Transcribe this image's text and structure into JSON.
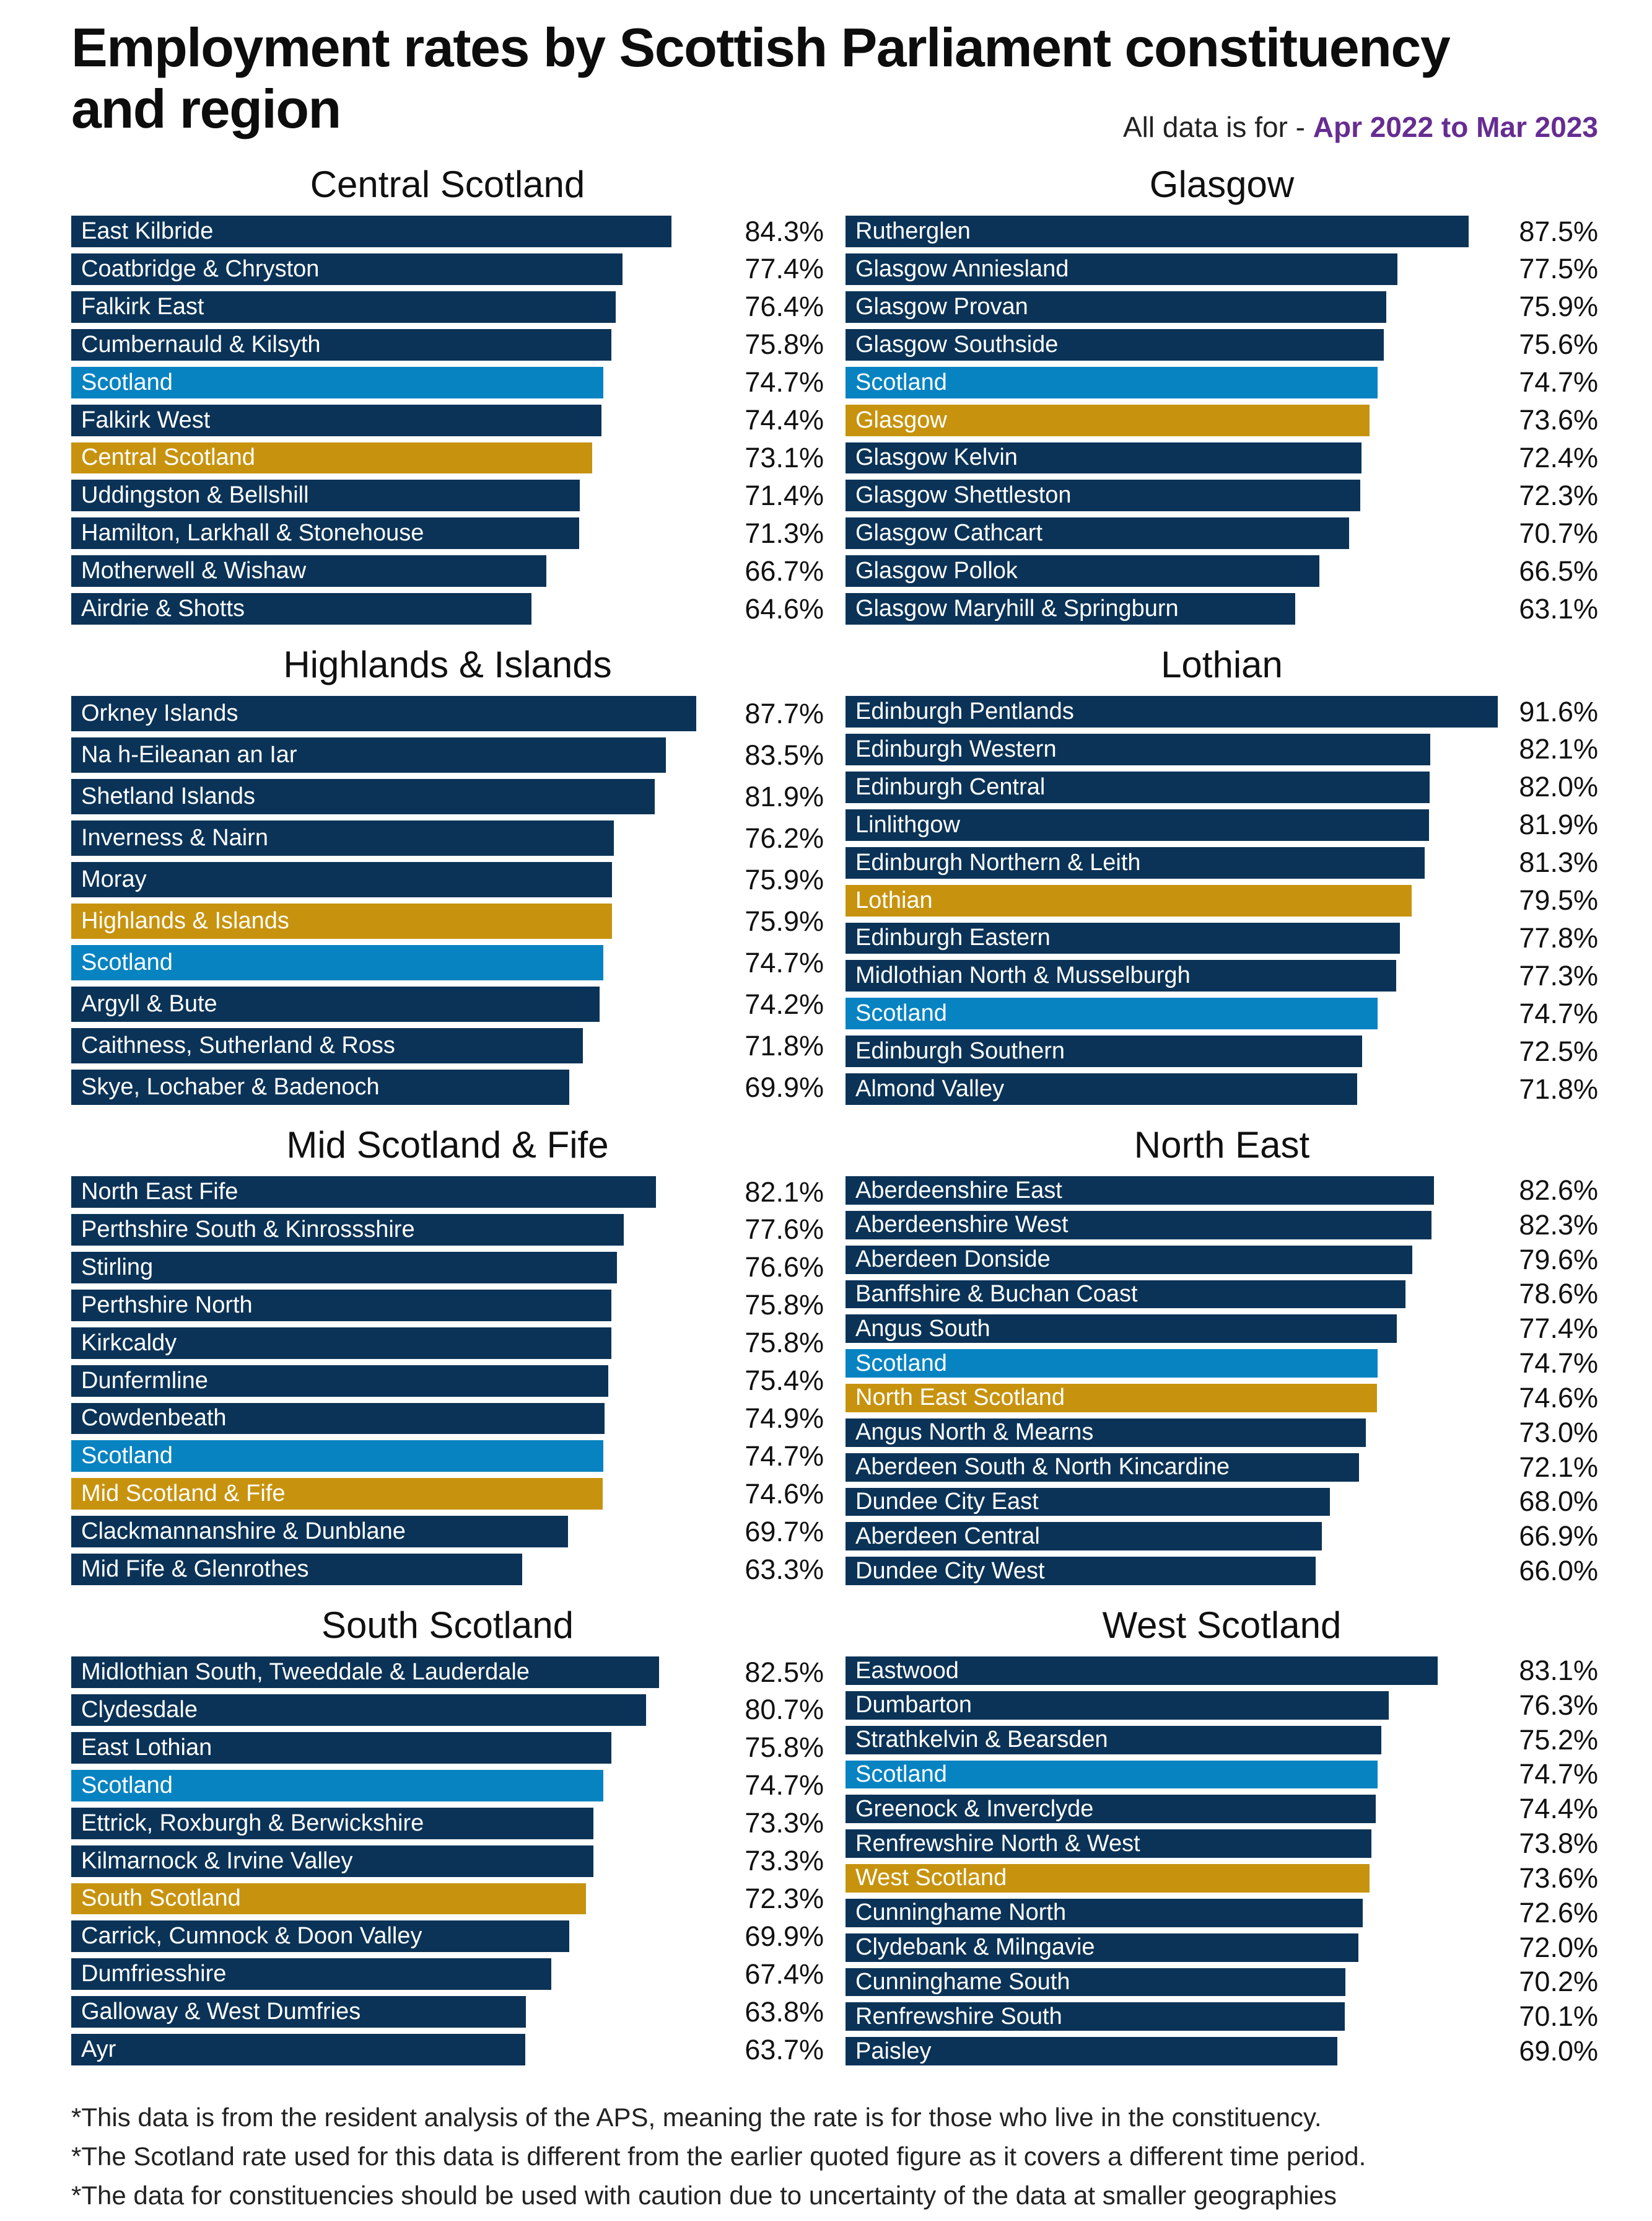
{
  "title_lines": [
    "Employment rates by Scottish Parliament constituency",
    "and region"
  ],
  "subtitle_prefix": "All data is for - ",
  "subtitle_period": "Apr 2022 to Mar 2023",
  "colors": {
    "navy": "#0b3357",
    "scotland_blue": "#0883c1",
    "region_gold": "#c7930e",
    "period_purple": "#662d91",
    "text": "#1a1a1a",
    "bar_label": "#ffffff"
  },
  "kind_color_key": {
    "constituency": "navy",
    "scotland": "scotland_blue",
    "region": "region_gold"
  },
  "footnotes": [
    "*This data is from the resident analysis of the APS, meaning the rate is for those who live in the constituency.",
    "*The Scotland rate used for this data is different from the earlier quoted figure as it covers a different time period.",
    "*The data for constituencies should be used with caution due to uncertainty of the data at smaller geographies"
  ],
  "chart_data": [
    {
      "type": "bar",
      "orientation": "horizontal",
      "unit": "%",
      "xlim": [
        0,
        100
      ],
      "grid": false,
      "title": "Central Scotland",
      "bars": [
        {
          "label": "East Kilbride",
          "value": 84.3,
          "kind": "constituency"
        },
        {
          "label": "Coatbridge & Chryston",
          "value": 77.4,
          "kind": "constituency"
        },
        {
          "label": "Falkirk East",
          "value": 76.4,
          "kind": "constituency"
        },
        {
          "label": "Cumbernauld & Kilsyth",
          "value": 75.8,
          "kind": "constituency"
        },
        {
          "label": "Scotland",
          "value": 74.7,
          "kind": "scotland"
        },
        {
          "label": "Falkirk West",
          "value": 74.4,
          "kind": "constituency"
        },
        {
          "label": "Central Scotland",
          "value": 73.1,
          "kind": "region"
        },
        {
          "label": "Uddingston & Bellshill",
          "value": 71.4,
          "kind": "constituency"
        },
        {
          "label": "Hamilton, Larkhall & Stonehouse",
          "value": 71.3,
          "kind": "constituency"
        },
        {
          "label": "Motherwell & Wishaw",
          "value": 66.7,
          "kind": "constituency"
        },
        {
          "label": "Airdrie & Shotts",
          "value": 64.6,
          "kind": "constituency"
        }
      ]
    },
    {
      "type": "bar",
      "orientation": "horizontal",
      "unit": "%",
      "xlim": [
        0,
        100
      ],
      "grid": false,
      "title": "Glasgow",
      "bars": [
        {
          "label": "Rutherglen",
          "value": 87.5,
          "kind": "constituency"
        },
        {
          "label": "Glasgow Anniesland",
          "value": 77.5,
          "kind": "constituency"
        },
        {
          "label": "Glasgow Provan",
          "value": 75.9,
          "kind": "constituency"
        },
        {
          "label": "Glasgow Southside",
          "value": 75.6,
          "kind": "constituency"
        },
        {
          "label": "Scotland",
          "value": 74.7,
          "kind": "scotland"
        },
        {
          "label": "Glasgow",
          "value": 73.6,
          "kind": "region"
        },
        {
          "label": "Glasgow Kelvin",
          "value": 72.4,
          "kind": "constituency"
        },
        {
          "label": "Glasgow Shettleston",
          "value": 72.3,
          "kind": "constituency"
        },
        {
          "label": "Glasgow Cathcart",
          "value": 70.7,
          "kind": "constituency"
        },
        {
          "label": "Glasgow Pollok",
          "value": 66.5,
          "kind": "constituency"
        },
        {
          "label": "Glasgow Maryhill & Springburn",
          "value": 63.1,
          "kind": "constituency"
        }
      ]
    },
    {
      "type": "bar",
      "orientation": "horizontal",
      "unit": "%",
      "xlim": [
        0,
        100
      ],
      "grid": false,
      "title": "Highlands & Islands",
      "bars": [
        {
          "label": "Orkney Islands",
          "value": 87.7,
          "kind": "constituency"
        },
        {
          "label": "Na h-Eileanan an Iar",
          "value": 83.5,
          "kind": "constituency"
        },
        {
          "label": "Shetland Islands",
          "value": 81.9,
          "kind": "constituency"
        },
        {
          "label": "Inverness & Nairn",
          "value": 76.2,
          "kind": "constituency"
        },
        {
          "label": "Moray",
          "value": 75.9,
          "kind": "constituency"
        },
        {
          "label": "Highlands & Islands",
          "value": 75.9,
          "kind": "region"
        },
        {
          "label": "Scotland",
          "value": 74.7,
          "kind": "scotland"
        },
        {
          "label": "Argyll & Bute",
          "value": 74.2,
          "kind": "constituency"
        },
        {
          "label": "Caithness, Sutherland & Ross",
          "value": 71.8,
          "kind": "constituency"
        },
        {
          "label": "Skye, Lochaber & Badenoch",
          "value": 69.9,
          "kind": "constituency"
        }
      ]
    },
    {
      "type": "bar",
      "orientation": "horizontal",
      "unit": "%",
      "xlim": [
        0,
        100
      ],
      "grid": false,
      "title": "Lothian",
      "bars": [
        {
          "label": "Edinburgh Pentlands",
          "value": 91.6,
          "kind": "constituency"
        },
        {
          "label": "Edinburgh Western",
          "value": 82.1,
          "kind": "constituency"
        },
        {
          "label": "Edinburgh Central",
          "value": 82.0,
          "kind": "constituency"
        },
        {
          "label": "Linlithgow",
          "value": 81.9,
          "kind": "constituency"
        },
        {
          "label": "Edinburgh Northern & Leith",
          "value": 81.3,
          "kind": "constituency"
        },
        {
          "label": "Lothian",
          "value": 79.5,
          "kind": "region"
        },
        {
          "label": "Edinburgh Eastern",
          "value": 77.8,
          "kind": "constituency"
        },
        {
          "label": "Midlothian North & Musselburgh",
          "value": 77.3,
          "kind": "constituency"
        },
        {
          "label": "Scotland",
          "value": 74.7,
          "kind": "scotland"
        },
        {
          "label": "Edinburgh Southern",
          "value": 72.5,
          "kind": "constituency"
        },
        {
          "label": "Almond Valley",
          "value": 71.8,
          "kind": "constituency"
        }
      ]
    },
    {
      "type": "bar",
      "orientation": "horizontal",
      "unit": "%",
      "xlim": [
        0,
        100
      ],
      "grid": false,
      "title": "Mid Scotland & Fife",
      "bars": [
        {
          "label": "North East Fife",
          "value": 82.1,
          "kind": "constituency"
        },
        {
          "label": "Perthshire South & Kinrossshire",
          "value": 77.6,
          "kind": "constituency"
        },
        {
          "label": "Stirling",
          "value": 76.6,
          "kind": "constituency"
        },
        {
          "label": "Perthshire North",
          "value": 75.8,
          "kind": "constituency"
        },
        {
          "label": "Kirkcaldy",
          "value": 75.8,
          "kind": "constituency"
        },
        {
          "label": "Dunfermline",
          "value": 75.4,
          "kind": "constituency"
        },
        {
          "label": "Cowdenbeath",
          "value": 74.9,
          "kind": "constituency"
        },
        {
          "label": "Scotland",
          "value": 74.7,
          "kind": "scotland"
        },
        {
          "label": "Mid Scotland & Fife",
          "value": 74.6,
          "kind": "region"
        },
        {
          "label": "Clackmannanshire & Dunblane",
          "value": 69.7,
          "kind": "constituency"
        },
        {
          "label": "Mid Fife & Glenrothes",
          "value": 63.3,
          "kind": "constituency"
        }
      ]
    },
    {
      "type": "bar",
      "orientation": "horizontal",
      "unit": "%",
      "xlim": [
        0,
        100
      ],
      "grid": false,
      "title": "North East",
      "bars": [
        {
          "label": "Aberdeenshire East",
          "value": 82.6,
          "kind": "constituency"
        },
        {
          "label": "Aberdeenshire West",
          "value": 82.3,
          "kind": "constituency"
        },
        {
          "label": "Aberdeen Donside",
          "value": 79.6,
          "kind": "constituency"
        },
        {
          "label": "Banffshire & Buchan Coast",
          "value": 78.6,
          "kind": "constituency"
        },
        {
          "label": "Angus South",
          "value": 77.4,
          "kind": "constituency"
        },
        {
          "label": "Scotland",
          "value": 74.7,
          "kind": "scotland"
        },
        {
          "label": "North East Scotland",
          "value": 74.6,
          "kind": "region"
        },
        {
          "label": "Angus North & Mearns",
          "value": 73.0,
          "kind": "constituency"
        },
        {
          "label": "Aberdeen South & North Kincardine",
          "value": 72.1,
          "kind": "constituency"
        },
        {
          "label": "Dundee City East",
          "value": 68.0,
          "kind": "constituency"
        },
        {
          "label": "Aberdeen Central",
          "value": 66.9,
          "kind": "constituency"
        },
        {
          "label": "Dundee City West",
          "value": 66.0,
          "kind": "constituency"
        }
      ]
    },
    {
      "type": "bar",
      "orientation": "horizontal",
      "unit": "%",
      "xlim": [
        0,
        100
      ],
      "grid": false,
      "title": "South Scotland",
      "bars": [
        {
          "label": "Midlothian South, Tweeddale & Lauderdale",
          "value": 82.5,
          "kind": "constituency"
        },
        {
          "label": "Clydesdale",
          "value": 80.7,
          "kind": "constituency"
        },
        {
          "label": "East Lothian",
          "value": 75.8,
          "kind": "constituency"
        },
        {
          "label": "Scotland",
          "value": 74.7,
          "kind": "scotland"
        },
        {
          "label": "Ettrick, Roxburgh & Berwickshire",
          "value": 73.3,
          "kind": "constituency"
        },
        {
          "label": "Kilmarnock & Irvine Valley",
          "value": 73.3,
          "kind": "constituency"
        },
        {
          "label": "South Scotland",
          "value": 72.3,
          "kind": "region"
        },
        {
          "label": "Carrick, Cumnock & Doon Valley",
          "value": 69.9,
          "kind": "constituency"
        },
        {
          "label": "Dumfriesshire",
          "value": 67.4,
          "kind": "constituency"
        },
        {
          "label": "Galloway & West Dumfries",
          "value": 63.8,
          "kind": "constituency"
        },
        {
          "label": "Ayr",
          "value": 63.7,
          "kind": "constituency"
        }
      ]
    },
    {
      "type": "bar",
      "orientation": "horizontal",
      "unit": "%",
      "xlim": [
        0,
        100
      ],
      "grid": false,
      "title": "West Scotland",
      "bars": [
        {
          "label": "Eastwood",
          "value": 83.1,
          "kind": "constituency"
        },
        {
          "label": "Dumbarton",
          "value": 76.3,
          "kind": "constituency"
        },
        {
          "label": "Strathkelvin & Bearsden",
          "value": 75.2,
          "kind": "constituency"
        },
        {
          "label": "Scotland",
          "value": 74.7,
          "kind": "scotland"
        },
        {
          "label": "Greenock & Inverclyde",
          "value": 74.4,
          "kind": "constituency"
        },
        {
          "label": "Renfrewshire North & West",
          "value": 73.8,
          "kind": "constituency"
        },
        {
          "label": "West Scotland",
          "value": 73.6,
          "kind": "region"
        },
        {
          "label": "Cunninghame North",
          "value": 72.6,
          "kind": "constituency"
        },
        {
          "label": "Clydebank & Milngavie",
          "value": 72.0,
          "kind": "constituency"
        },
        {
          "label": "Cunninghame South",
          "value": 70.2,
          "kind": "constituency"
        },
        {
          "label": "Renfrewshire South",
          "value": 70.1,
          "kind": "constituency"
        },
        {
          "label": "Paisley",
          "value": 69.0,
          "kind": "constituency"
        }
      ]
    }
  ]
}
